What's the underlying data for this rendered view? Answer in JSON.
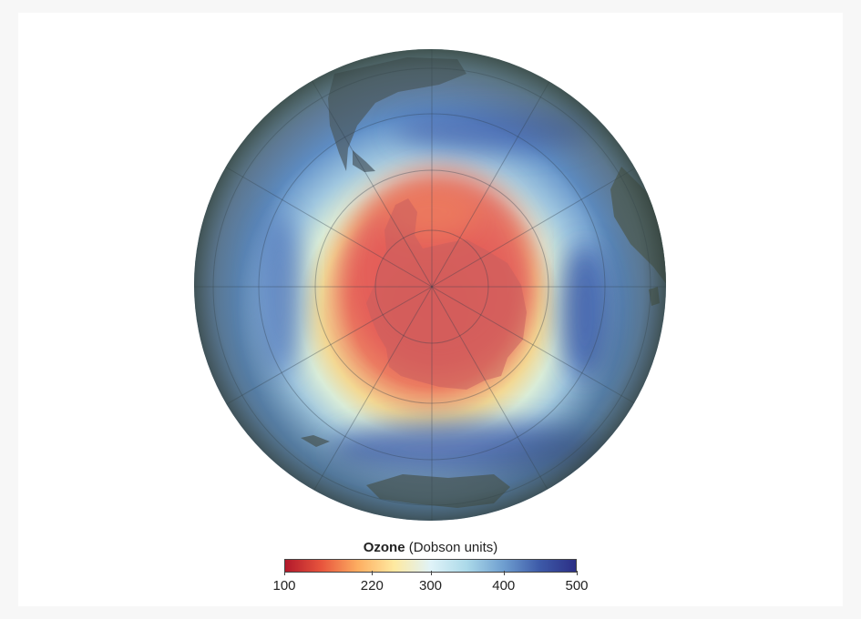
{
  "legend": {
    "title_bold": "Ozone",
    "title_rest": " (Dobson units)",
    "range": [
      100,
      500
    ],
    "ticks": [
      {
        "label": "100",
        "value": 100
      },
      {
        "label": "220",
        "value": 220
      },
      {
        "label": "300",
        "value": 300
      },
      {
        "label": "400",
        "value": 400
      },
      {
        "label": "500",
        "value": 500
      }
    ],
    "colorscale": [
      "#b2182b",
      "#e8553d",
      "#fdae61",
      "#fee9a0",
      "#e0f3f8",
      "#abd9e9",
      "#6f9fd0",
      "#3d5aa8",
      "#2c2f86"
    ]
  },
  "map": {
    "projection": "south-polar orthographic",
    "ocean_tint": "#3f5a8f",
    "land_tint": "#6a7a78",
    "hole_color": "#e3645a"
  }
}
